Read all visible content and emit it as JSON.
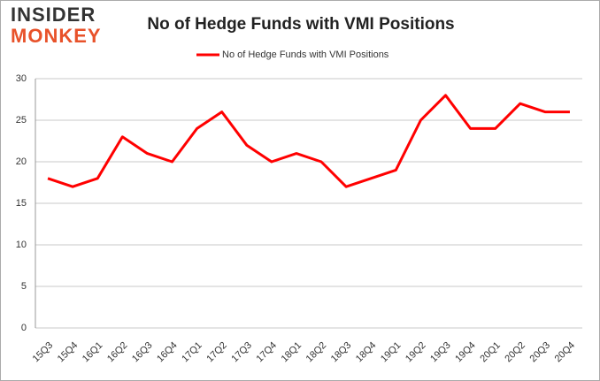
{
  "logo": {
    "line1": "INSIDER",
    "line2": "MONKEY"
  },
  "chart_data": {
    "type": "line",
    "title": "No of Hedge Funds with VMI Positions",
    "categories": [
      "15Q3",
      "15Q4",
      "16Q1",
      "16Q2",
      "16Q3",
      "16Q4",
      "17Q1",
      "17Q2",
      "17Q3",
      "17Q4",
      "18Q1",
      "18Q2",
      "18Q3",
      "18Q4",
      "19Q1",
      "19Q2",
      "19Q3",
      "19Q4",
      "20Q1",
      "20Q2",
      "20Q3",
      "20Q4"
    ],
    "series": [
      {
        "name": "No of Hedge Funds with VMI Positions",
        "color": "#ff0000",
        "values": [
          18,
          17,
          18,
          23,
          21,
          20,
          24,
          26,
          22,
          20,
          21,
          20,
          17,
          18,
          19,
          25,
          28,
          24,
          24,
          27,
          26,
          26
        ]
      }
    ],
    "ylim": [
      0,
      30
    ],
    "yticks": [
      0,
      5,
      10,
      15,
      20,
      25,
      30
    ],
    "grid": true,
    "legend": "top"
  }
}
